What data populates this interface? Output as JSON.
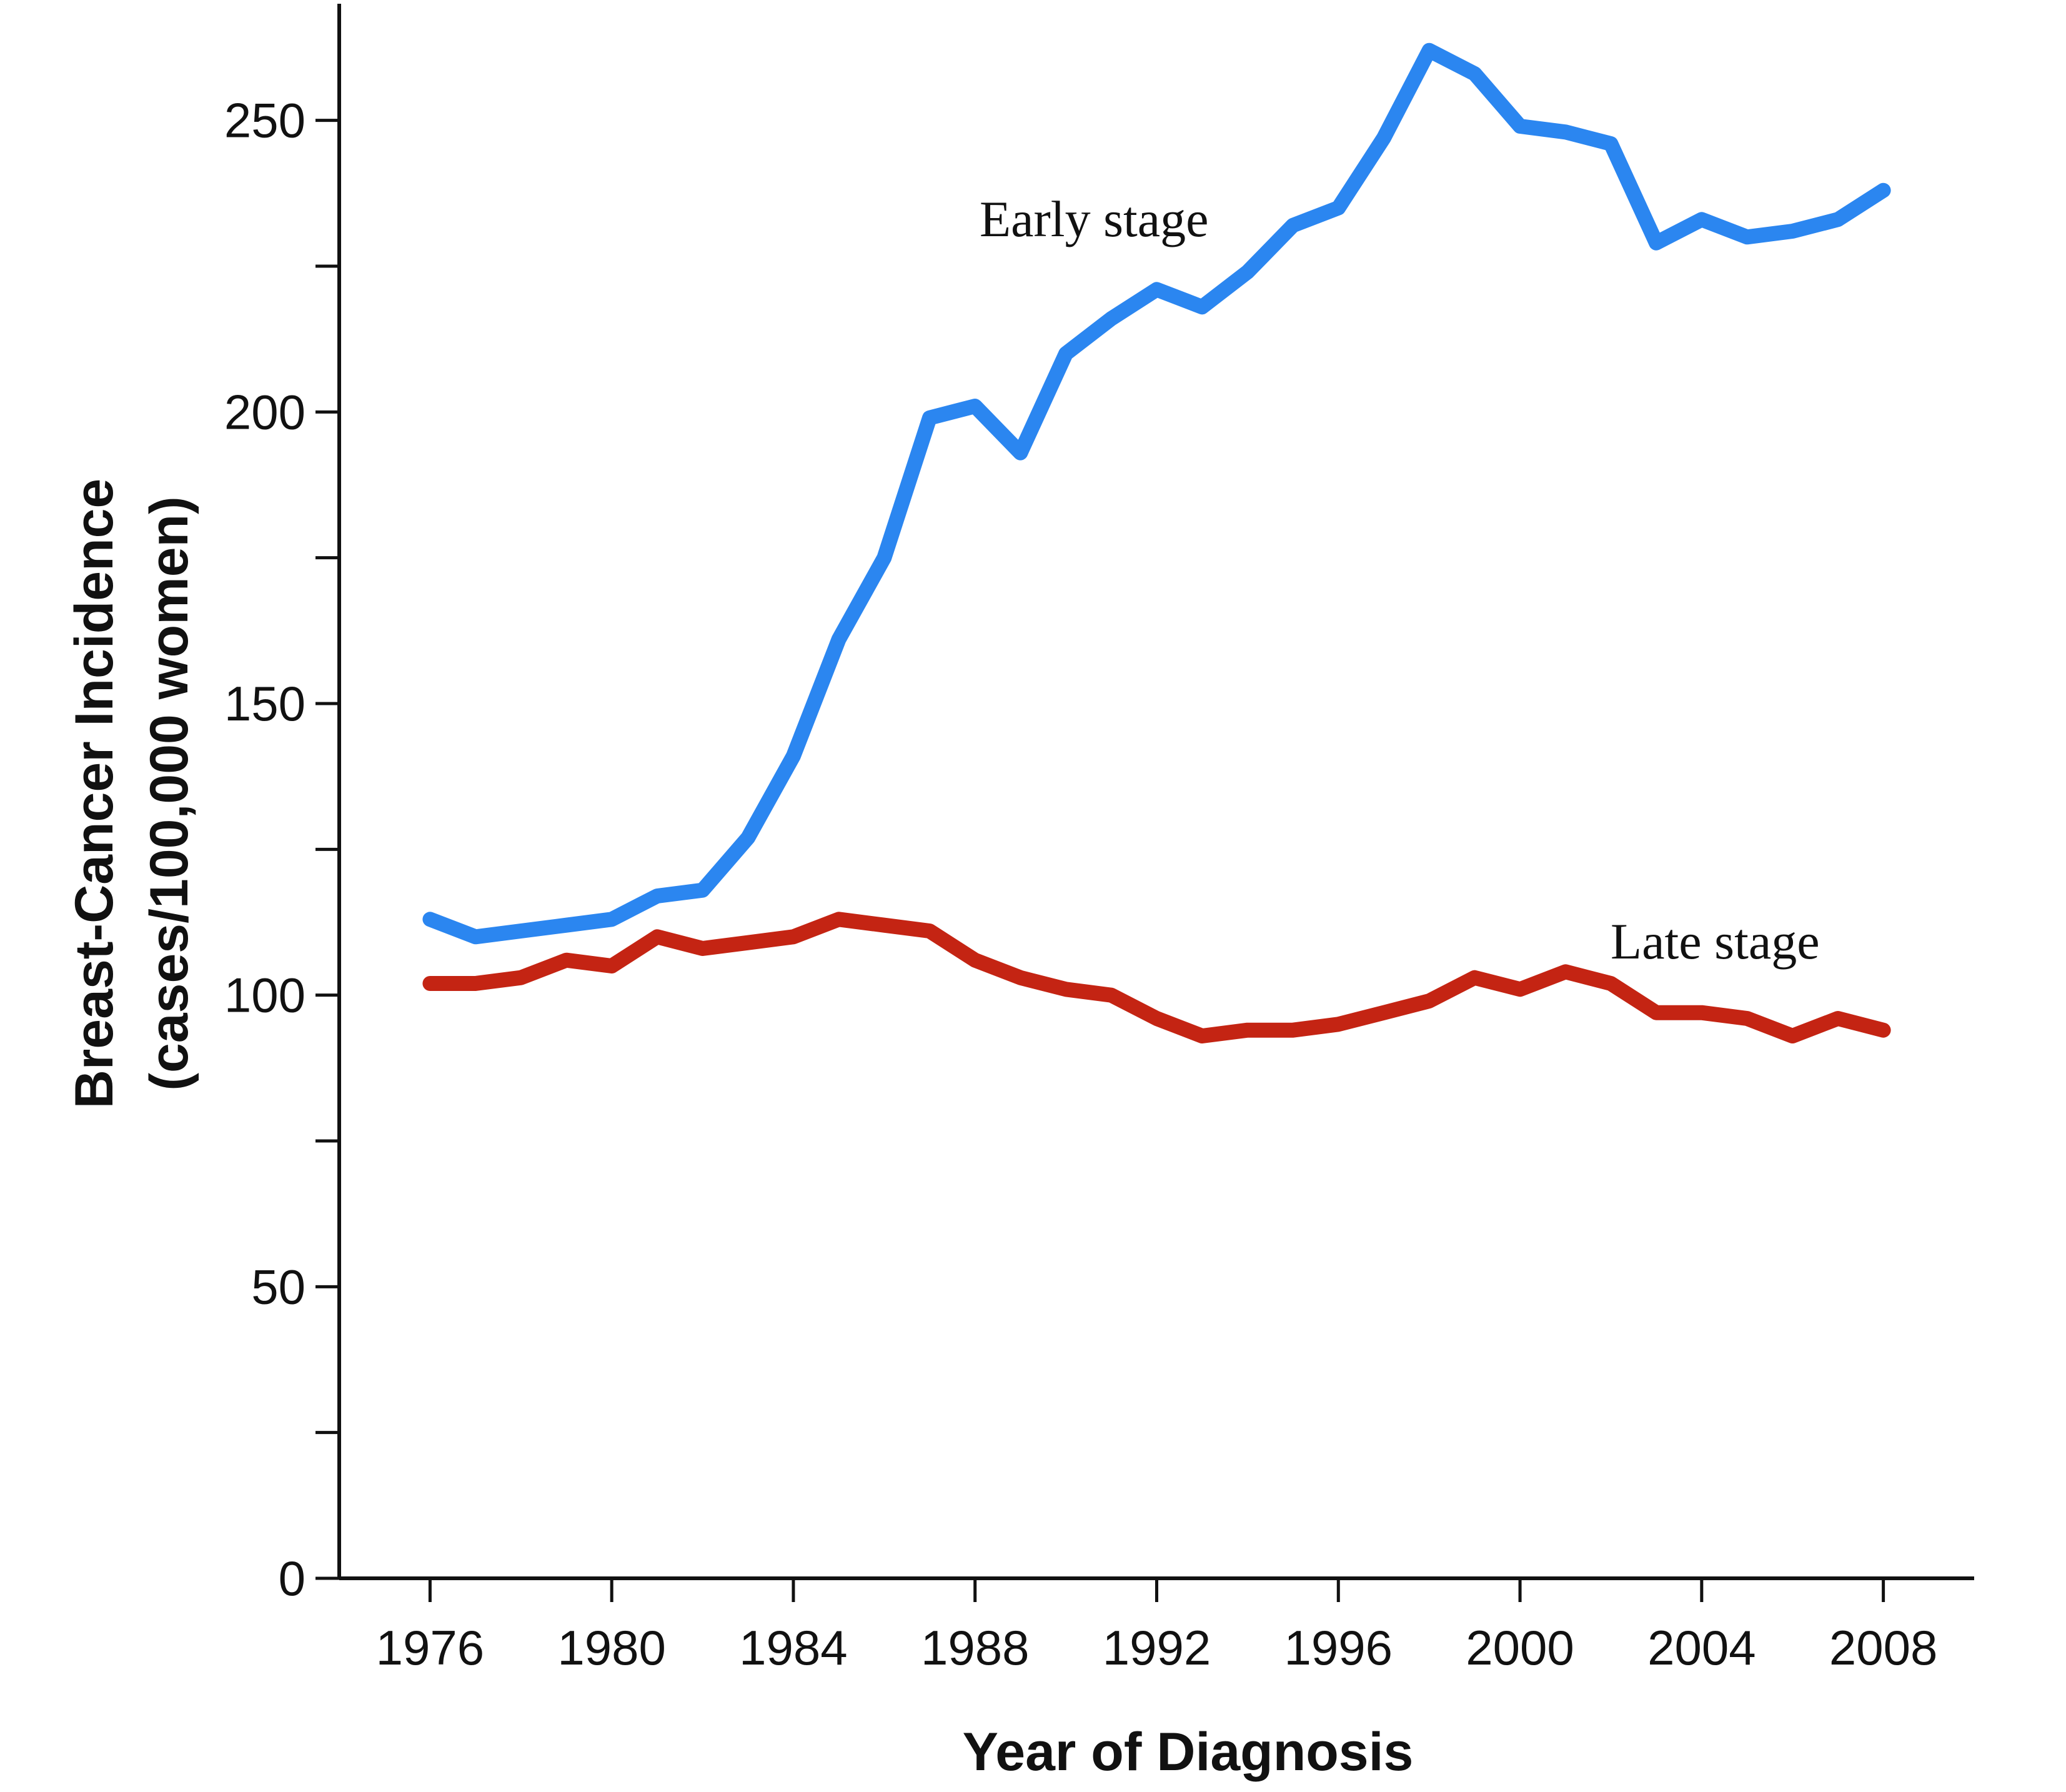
{
  "chart_data": {
    "type": "line",
    "title": "",
    "xlabel": "Year of Diagnosis",
    "ylabel_line1": "Breast-Cancer Incidence",
    "ylabel_line2": "(cases/100,000 women)",
    "xlim": [
      1974,
      2010
    ],
    "ylim": [
      0,
      270
    ],
    "x_ticks": [
      1976,
      1980,
      1984,
      1988,
      1992,
      1996,
      2000,
      2004,
      2008
    ],
    "x_tick_labels": [
      "1976",
      "1980",
      "1984",
      "1988",
      "1992",
      "1996",
      "2000",
      "2004",
      "2008"
    ],
    "y_ticks": [
      0,
      25,
      50,
      75,
      100,
      125,
      150,
      175,
      200,
      225,
      250
    ],
    "y_tick_labels": [
      "0",
      "",
      "50",
      "",
      "100",
      "",
      "150",
      "",
      "200",
      "",
      "250"
    ],
    "grid": false,
    "x": [
      1976,
      1977,
      1978,
      1979,
      1980,
      1981,
      1982,
      1983,
      1984,
      1985,
      1986,
      1987,
      1988,
      1989,
      1990,
      1991,
      1992,
      1993,
      1994,
      1995,
      1996,
      1997,
      1998,
      1999,
      2000,
      2001,
      2002,
      2003,
      2004,
      2005,
      2006,
      2007,
      2008
    ],
    "series": [
      {
        "name": "Early stage",
        "color": "#2b86f0",
        "values": [
          113,
          110,
          111,
          112,
          113,
          117,
          118,
          127,
          141,
          161,
          175,
          199,
          201,
          193,
          210,
          216,
          221,
          218,
          224,
          232,
          235,
          247,
          262,
          258,
          249,
          248,
          246,
          229,
          233,
          230,
          231,
          233,
          238
        ]
      },
      {
        "name": "Late stage",
        "color": "#c42413",
        "values": [
          102,
          102,
          103,
          106,
          105,
          110,
          108,
          109,
          110,
          113,
          112,
          111,
          106,
          103,
          101,
          100,
          96,
          93,
          94,
          94,
          95,
          97,
          99,
          103,
          101,
          104,
          102,
          97,
          97,
          96,
          93,
          96,
          94
        ]
      }
    ]
  }
}
